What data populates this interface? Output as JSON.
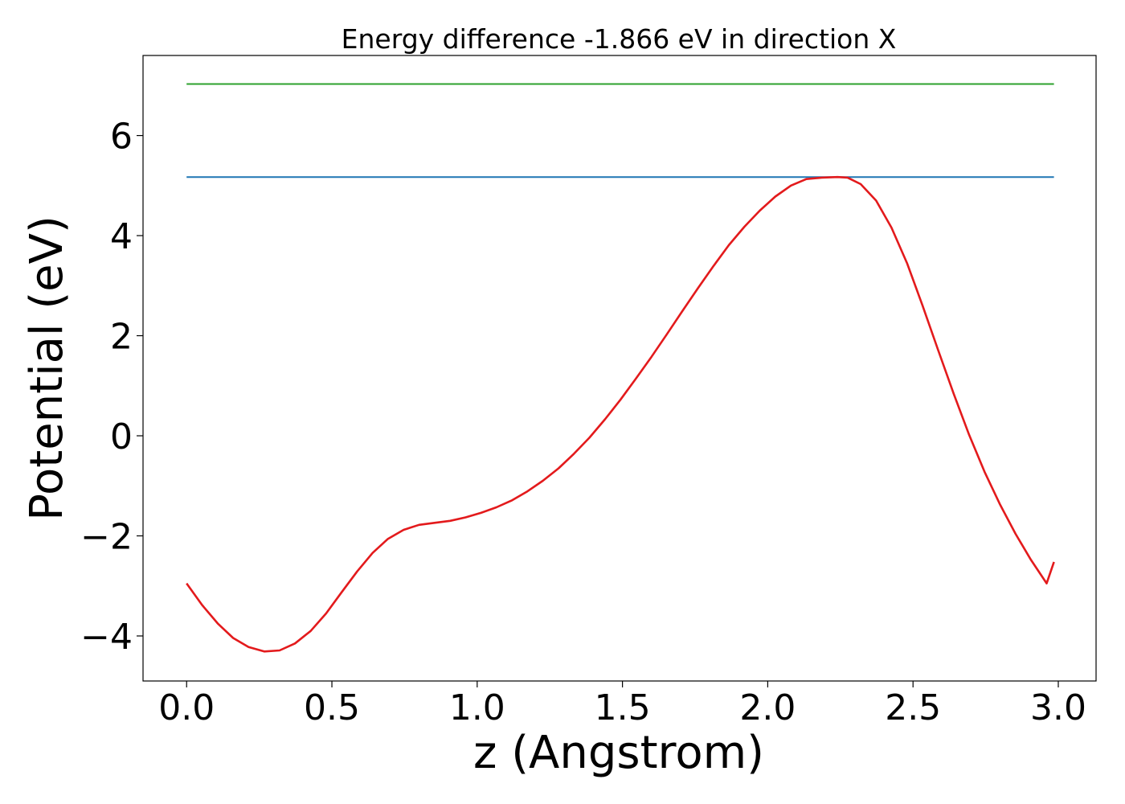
{
  "chart_data": {
    "type": "line",
    "title": "Energy difference -1.866 eV in direction X",
    "xlabel": "z (Angstrom)",
    "ylabel": "Potential (eV)",
    "xlim": [
      -0.15,
      3.13
    ],
    "ylim": [
      -4.9,
      7.6
    ],
    "xticks": [
      0.0,
      0.5,
      1.0,
      1.5,
      2.0,
      2.5,
      3.0
    ],
    "xtick_labels": [
      "0.0",
      "0.5",
      "1.0",
      "1.5",
      "2.0",
      "2.5",
      "3.0"
    ],
    "yticks": [
      -4,
      -2,
      0,
      2,
      4,
      6
    ],
    "ytick_labels": [
      "−4",
      "−2",
      "0",
      "2",
      "4",
      "6"
    ],
    "grid": false,
    "legend": "none",
    "series": [
      {
        "color": "#2ca02c",
        "style": "hline",
        "x": [
          0.0,
          2.985
        ],
        "y": [
          7.03,
          7.03
        ]
      },
      {
        "color": "#1f77b4",
        "style": "hline",
        "x": [
          0.0,
          2.985
        ],
        "y": [
          5.17,
          5.17
        ]
      },
      {
        "color": "#e31a1c",
        "style": "line",
        "x": [
          0.0,
          0.053,
          0.107,
          0.16,
          0.213,
          0.267,
          0.32,
          0.373,
          0.427,
          0.48,
          0.533,
          0.587,
          0.64,
          0.693,
          0.747,
          0.8,
          0.853,
          0.907,
          0.96,
          1.013,
          1.066,
          1.12,
          1.173,
          1.226,
          1.28,
          1.333,
          1.386,
          1.44,
          1.493,
          1.546,
          1.6,
          1.653,
          1.706,
          1.76,
          1.813,
          1.866,
          1.92,
          1.973,
          2.026,
          2.08,
          2.133,
          2.186,
          2.24,
          2.275,
          2.32,
          2.373,
          2.426,
          2.48,
          2.533,
          2.586,
          2.64,
          2.693,
          2.746,
          2.8,
          2.853,
          2.906,
          2.96,
          2.985
        ],
        "y": [
          -2.95,
          -3.38,
          -3.75,
          -4.04,
          -4.22,
          -4.31,
          -4.29,
          -4.15,
          -3.9,
          -3.55,
          -3.13,
          -2.71,
          -2.34,
          -2.06,
          -1.88,
          -1.78,
          -1.74,
          -1.7,
          -1.63,
          -1.54,
          -1.43,
          -1.29,
          -1.11,
          -0.9,
          -0.65,
          -0.36,
          -0.04,
          0.33,
          0.72,
          1.14,
          1.58,
          2.03,
          2.49,
          2.95,
          3.39,
          3.81,
          4.18,
          4.5,
          4.78,
          5.0,
          5.13,
          5.16,
          5.17,
          5.16,
          5.03,
          4.7,
          4.16,
          3.44,
          2.6,
          1.72,
          0.84,
          0.02,
          -0.72,
          -1.38,
          -1.96,
          -2.48,
          -2.95,
          -2.52
        ]
      }
    ]
  }
}
